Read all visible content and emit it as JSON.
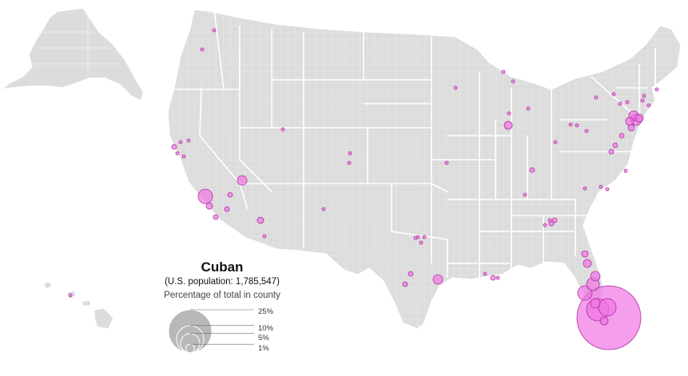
{
  "legend": {
    "title": "Cuban",
    "subtitle": "(U.S. population: 1,785,547)",
    "caption": "Percentage of total in county",
    "sizes": [
      {
        "label": "25%",
        "value": 25
      },
      {
        "label": "10%",
        "value": 10
      },
      {
        "label": "5%",
        "value": 5
      },
      {
        "label": "1%",
        "value": 1
      }
    ]
  },
  "colors": {
    "land": "#dcdcdc",
    "borders": "#ffffff",
    "bubble_fill": "#f075e4",
    "bubble_stroke": "#b0309f",
    "legend_circle": "#b8b8b8"
  }
}
